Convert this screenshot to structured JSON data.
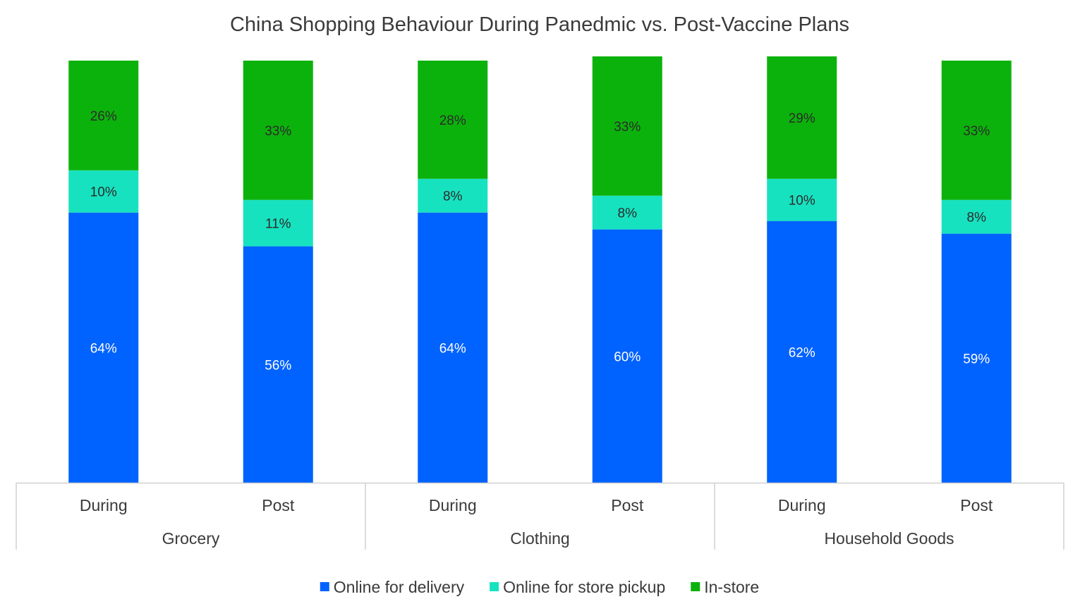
{
  "chart_data": {
    "type": "bar",
    "stacked": true,
    "title": "China Shopping Behaviour During Panedmic vs. Post-Vaccine Plans",
    "groups": [
      {
        "name": "Grocery",
        "categories": [
          "During",
          "Post"
        ]
      },
      {
        "name": "Clothing",
        "categories": [
          "During",
          "Post"
        ]
      },
      {
        "name": "Household Goods",
        "categories": [
          "During",
          "Post"
        ]
      }
    ],
    "series": [
      {
        "name": "Online for delivery",
        "color": "#0062ff",
        "label_color": "#ffffff",
        "values": [
          64,
          56,
          64,
          60,
          62,
          59
        ],
        "labels": [
          "64%",
          "56%",
          "64%",
          "60%",
          "62%",
          "59%"
        ]
      },
      {
        "name": "Online for store pickup",
        "color": "#17e2c0",
        "label_color": "#2b2b2b",
        "values": [
          10,
          11,
          8,
          8,
          10,
          8
        ],
        "labels": [
          "10%",
          "11%",
          "8%",
          "8%",
          "10%",
          "8%"
        ]
      },
      {
        "name": "In-store",
        "color": "#0cb20c",
        "label_color": "#2b2b2b",
        "values": [
          26,
          33,
          28,
          33,
          29,
          33
        ],
        "labels": [
          "26%",
          "33%",
          "28%",
          "33%",
          "29%",
          "33%"
        ]
      }
    ],
    "ylim": [
      0,
      100
    ],
    "grid": false,
    "legend_position": "bottom"
  }
}
